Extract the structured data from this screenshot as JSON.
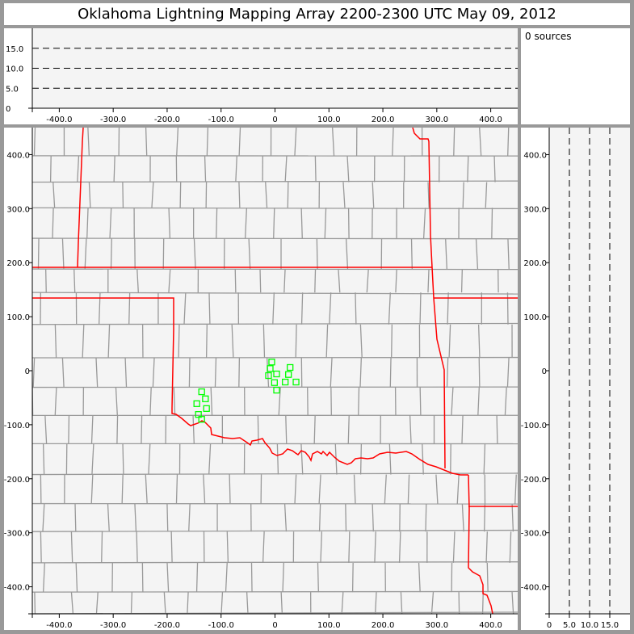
{
  "title": "Oklahoma Lightning Mapping Array   2200-2300 UTC  May 09, 2012",
  "info": {
    "sources_text": "0 sources"
  },
  "colors": {
    "plot_bg": "#f4f4f4",
    "frame": "#999999",
    "state_border": "#ff0000",
    "county_border": "#999999",
    "source_marker": "#00ff00",
    "altitude_gridline": "#000000"
  },
  "chart_data": [
    {
      "type": "scatter",
      "panel": "altitude-vs-east-west",
      "x_ticks": [
        "-400.0",
        "-300.0",
        "-200.0",
        "-100.0",
        "0",
        "100.0",
        "200.0",
        "300.0",
        "400.0"
      ],
      "y_ticks": [
        "0",
        "5.0",
        "10.0",
        "15.0"
      ],
      "xlim": [
        -450,
        450
      ],
      "ylim": [
        0,
        20
      ],
      "dashed_gridlines": [
        5,
        10,
        15
      ],
      "points": []
    },
    {
      "type": "scatter",
      "panel": "plan-view-map",
      "x_ticks": [
        "-400.0",
        "-300.0",
        "-200.0",
        "-100.0",
        "0",
        "100.0",
        "200.0",
        "300.0",
        "400.0"
      ],
      "y_ticks": [
        "400.0",
        "300.0",
        "200.0",
        "100.0",
        "0",
        "-100.0",
        "-200.0",
        "-300.0",
        "-400.0"
      ],
      "xlim": [
        -450,
        450
      ],
      "ylim": [
        -450,
        450
      ],
      "marker": "open-square",
      "points": [
        {
          "x": -6,
          "y": 16
        },
        {
          "x": -9,
          "y": 4
        },
        {
          "x": 3,
          "y": -6
        },
        {
          "x": -12,
          "y": -9
        },
        {
          "x": -1,
          "y": -22
        },
        {
          "x": 3,
          "y": -36
        },
        {
          "x": 28,
          "y": 6
        },
        {
          "x": 25,
          "y": -7
        },
        {
          "x": 19,
          "y": -21
        },
        {
          "x": 39,
          "y": -21
        },
        {
          "x": -136,
          "y": -39
        },
        {
          "x": -129,
          "y": -52
        },
        {
          "x": -145,
          "y": -61
        },
        {
          "x": -127,
          "y": -70
        },
        {
          "x": -142,
          "y": -81
        },
        {
          "x": -136,
          "y": -90
        }
      ]
    },
    {
      "type": "scatter",
      "panel": "north-south-vs-altitude",
      "x_ticks": [
        "0",
        "5.0",
        "10.0",
        "15.0"
      ],
      "y_ticks": [
        "400.0",
        "300.0",
        "200.0",
        "100.0",
        "0",
        "-100.0",
        "-200.0",
        "-300.0",
        "-400.0"
      ],
      "xlim": [
        0,
        20
      ],
      "ylim": [
        -450,
        450
      ],
      "dashed_gridlines": [
        5,
        10,
        15
      ],
      "points": []
    }
  ]
}
